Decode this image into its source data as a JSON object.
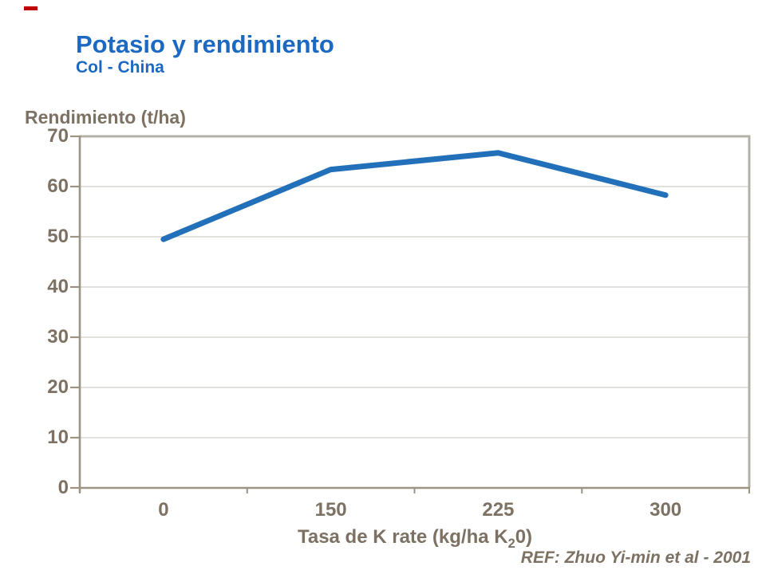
{
  "header": {
    "title": "Potasio y rendimiento",
    "subtitle": "Col - China"
  },
  "footer": {
    "ref": "REF: Zhuo Yi-min et al - 2001"
  },
  "colors": {
    "title_blue": "#1B69C3",
    "line_blue": "#2170B9",
    "axis_text": "#7C7162",
    "grid": "#D8D7D2",
    "axis_line": "#9B9484",
    "plot_border": "#B3B1A7",
    "red_mark": "#C00000"
  },
  "chart_data": {
    "type": "line",
    "title": "Potasio y rendimiento",
    "subtitle": "Col - China",
    "ylabel": "Rendimiento (t/ha)",
    "xlabel": "Tasa de K rate (kg/ha K20)",
    "xlabel_parts": {
      "pre": "Tasa de K rate (kg/ha K",
      "sub": "2",
      "post": "0)"
    },
    "categories": [
      "0",
      "150",
      "225",
      "300"
    ],
    "series": [
      {
        "name": "Rendimiento (t/ha)",
        "values": [
          49.5,
          63.4,
          66.7,
          58.3
        ],
        "color": "#2170B9"
      }
    ],
    "ylim": [
      0,
      70
    ],
    "yticks": [
      0,
      10,
      20,
      30,
      40,
      50,
      60,
      70
    ],
    "grid": "horizontal-only",
    "legend": "none",
    "annotation": "REF: Zhuo Yi-min et al - 2001"
  }
}
